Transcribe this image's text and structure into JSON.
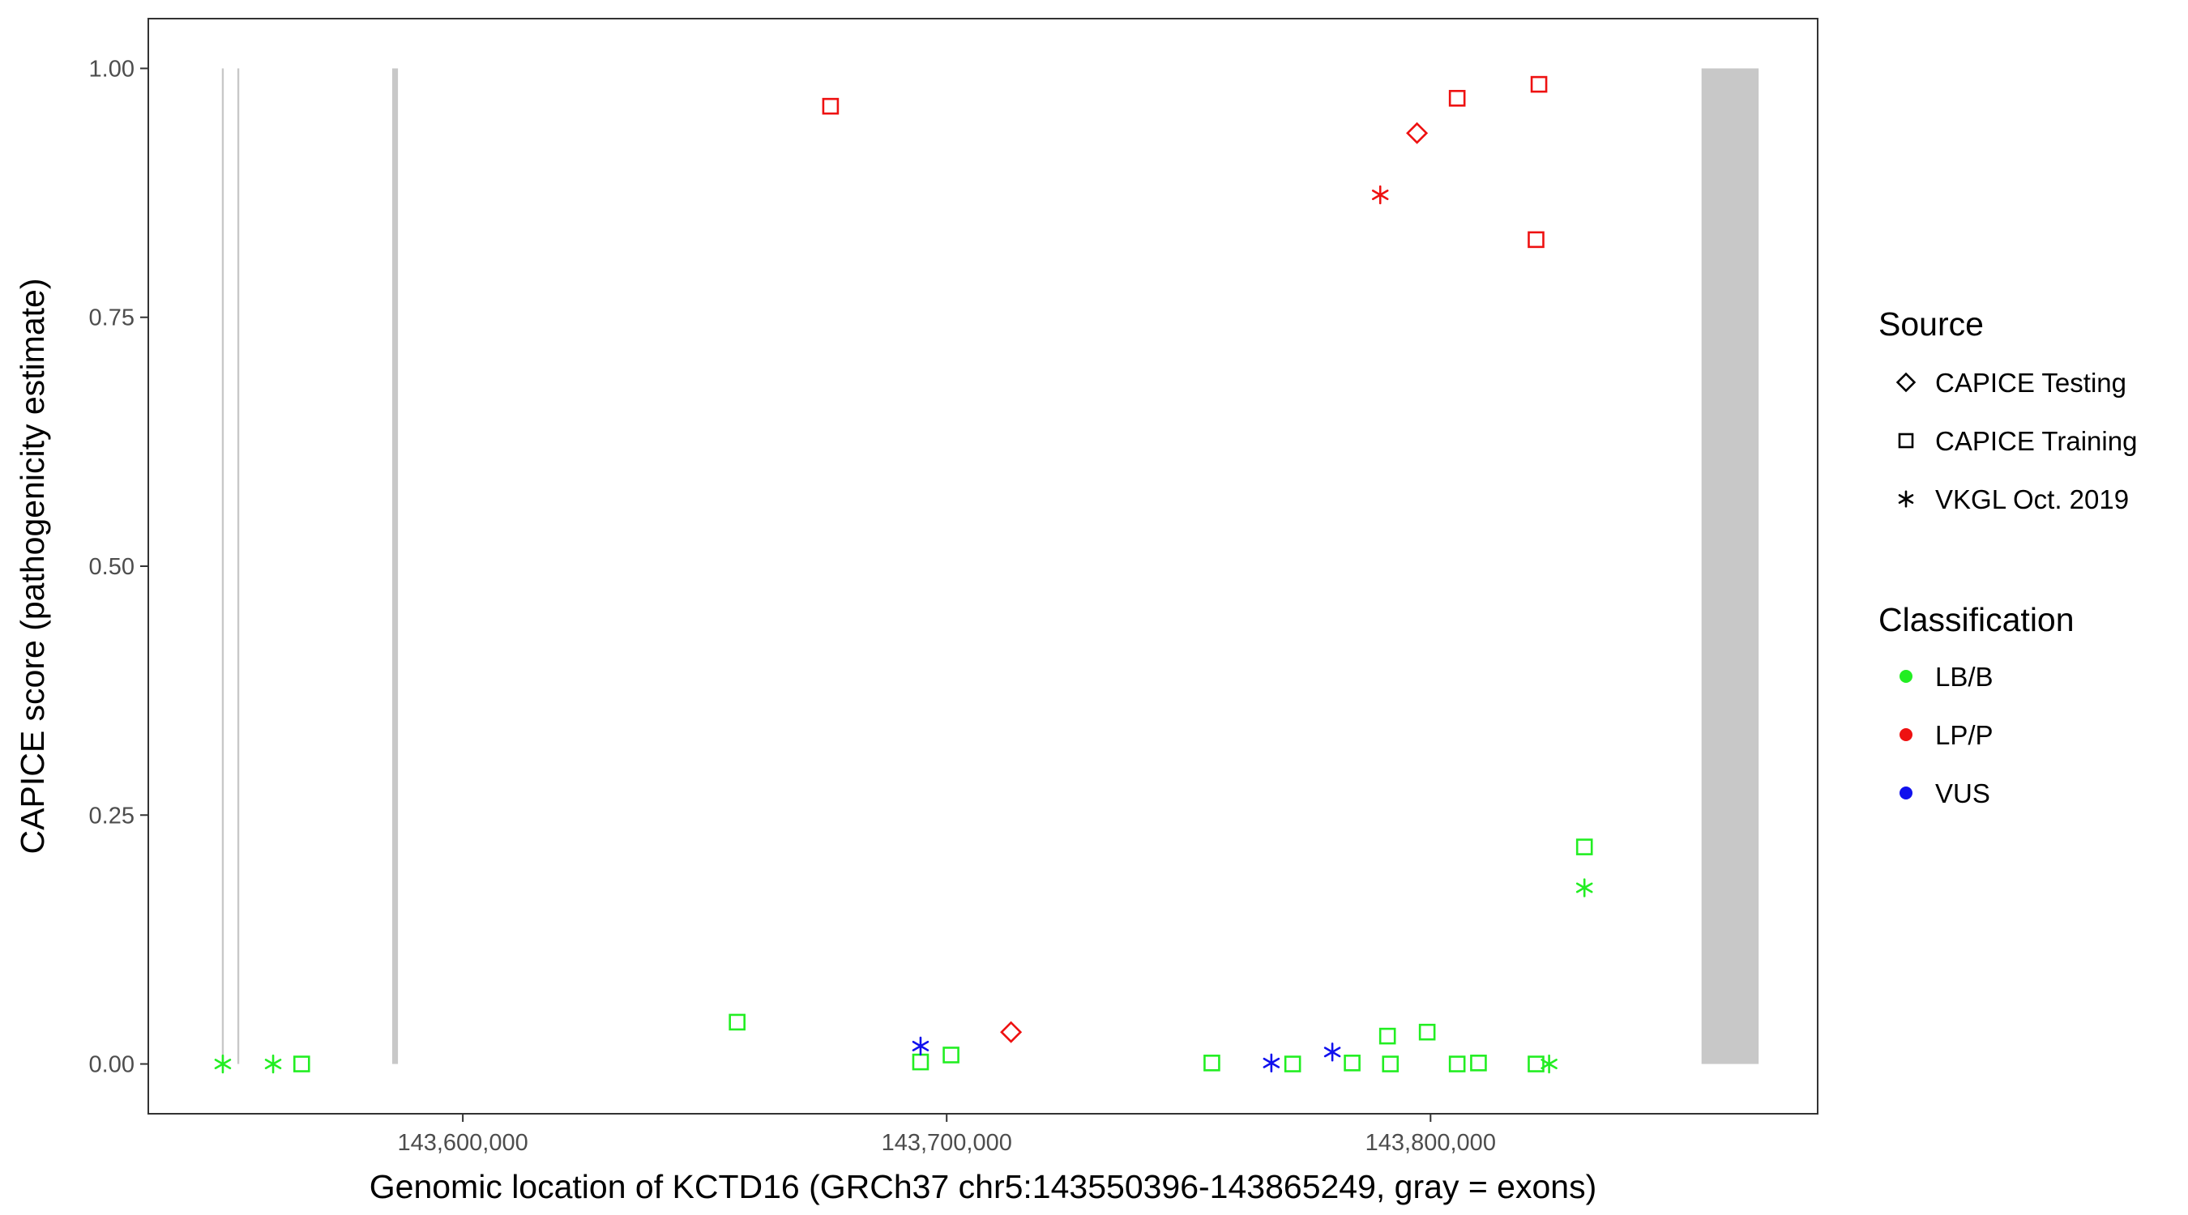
{
  "chart_data": {
    "type": "scatter",
    "xlabel": "Genomic location of KCTD16 (GRCh37 chr5:143550396-143865249, gray = exons)",
    "ylabel": "CAPICE score (pathogenicity estimate)",
    "xlim": [
      143535000,
      143880000
    ],
    "ylim": [
      -0.05,
      1.05
    ],
    "x_ticks": [
      143600000,
      143700000,
      143800000
    ],
    "x_tick_labels": [
      "143,600,000",
      "143,700,000",
      "143,800,000"
    ],
    "y_ticks": [
      0,
      0.25,
      0.5,
      0.75,
      1.0
    ],
    "y_tick_labels": [
      "0.00",
      "0.25",
      "0.50",
      "0.75",
      "1.00"
    ],
    "grid": false,
    "exons": [
      {
        "start": 143550200,
        "end": 143550600,
        "y": [
          0,
          1
        ]
      },
      {
        "start": 143553400,
        "end": 143553800,
        "y": [
          0,
          1
        ]
      },
      {
        "start": 143585400,
        "end": 143586600,
        "y": [
          0,
          1
        ]
      },
      {
        "start": 143856000,
        "end": 143867800,
        "y": [
          0,
          1
        ]
      }
    ],
    "exon_color": "#c8c8c8",
    "legend_position": "right",
    "legend": {
      "source_title": "Source",
      "source_entries": [
        {
          "label": "CAPICE Testing",
          "shape": "diamond"
        },
        {
          "label": "CAPICE Training",
          "shape": "square"
        },
        {
          "label": "VKGL Oct. 2019",
          "shape": "asterisk"
        }
      ],
      "classification_title": "Classification",
      "classification_entries": [
        {
          "label": "LB/B",
          "color": "#22ee22"
        },
        {
          "label": "LP/P",
          "color": "#ee1111"
        },
        {
          "label": "VUS",
          "color": "#1111ee"
        }
      ]
    },
    "points": [
      {
        "x": 143550400,
        "y": 0.0,
        "shape": "asterisk",
        "cls": "LB/B"
      },
      {
        "x": 143560800,
        "y": 0.0,
        "shape": "asterisk",
        "cls": "LB/B"
      },
      {
        "x": 143566700,
        "y": 0.0,
        "shape": "square",
        "cls": "LB/B"
      },
      {
        "x": 143656700,
        "y": 0.042,
        "shape": "square",
        "cls": "LB/B"
      },
      {
        "x": 143676000,
        "y": 0.962,
        "shape": "square",
        "cls": "LP/P"
      },
      {
        "x": 143694600,
        "y": 0.002,
        "shape": "square",
        "cls": "LB/B"
      },
      {
        "x": 143694600,
        "y": 0.018,
        "shape": "asterisk",
        "cls": "VUS"
      },
      {
        "x": 143700900,
        "y": 0.009,
        "shape": "square",
        "cls": "LB/B"
      },
      {
        "x": 143713300,
        "y": 0.032,
        "shape": "diamond",
        "cls": "LP/P"
      },
      {
        "x": 143754800,
        "y": 0.001,
        "shape": "square",
        "cls": "LB/B"
      },
      {
        "x": 143767100,
        "y": 0.001,
        "shape": "asterisk",
        "cls": "VUS"
      },
      {
        "x": 143771500,
        "y": 0.0,
        "shape": "square",
        "cls": "LB/B"
      },
      {
        "x": 143779700,
        "y": 0.012,
        "shape": "asterisk",
        "cls": "VUS"
      },
      {
        "x": 143783800,
        "y": 0.001,
        "shape": "square",
        "cls": "LB/B"
      },
      {
        "x": 143789600,
        "y": 0.873,
        "shape": "asterisk",
        "cls": "LP/P"
      },
      {
        "x": 143791100,
        "y": 0.028,
        "shape": "square",
        "cls": "LB/B"
      },
      {
        "x": 143791700,
        "y": 0.0,
        "shape": "square",
        "cls": "LB/B"
      },
      {
        "x": 143797200,
        "y": 0.935,
        "shape": "diamond",
        "cls": "LP/P"
      },
      {
        "x": 143799300,
        "y": 0.032,
        "shape": "square",
        "cls": "LB/B"
      },
      {
        "x": 143805500,
        "y": 0.97,
        "shape": "square",
        "cls": "LP/P"
      },
      {
        "x": 143805500,
        "y": 0.0,
        "shape": "square",
        "cls": "LB/B"
      },
      {
        "x": 143809900,
        "y": 0.001,
        "shape": "square",
        "cls": "LB/B"
      },
      {
        "x": 143821800,
        "y": 0.828,
        "shape": "square",
        "cls": "LP/P"
      },
      {
        "x": 143821800,
        "y": 0.0,
        "shape": "square",
        "cls": "LB/B"
      },
      {
        "x": 143822400,
        "y": 0.984,
        "shape": "square",
        "cls": "LP/P"
      },
      {
        "x": 143824500,
        "y": 0.0,
        "shape": "asterisk",
        "cls": "LB/B"
      },
      {
        "x": 143831800,
        "y": 0.218,
        "shape": "square",
        "cls": "LB/B"
      },
      {
        "x": 143831800,
        "y": 0.177,
        "shape": "asterisk",
        "cls": "LB/B"
      }
    ]
  }
}
